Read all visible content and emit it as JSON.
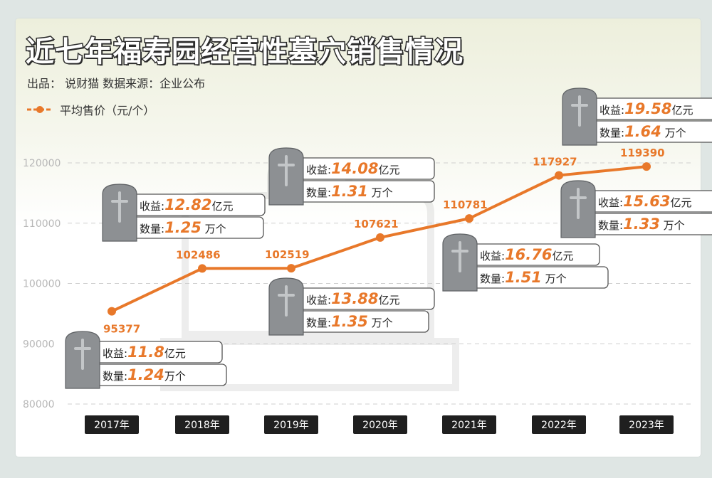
{
  "title": "近七年福寿园经营性墓穴销售情况",
  "subtitle": "出品： 说财猫  数据来源：企业公布",
  "legend": {
    "label": "平均售价（元/个）",
    "color": "#e8782a"
  },
  "chart_data": {
    "type": "line",
    "title": "近七年福寿园经营性墓穴销售情况",
    "categories": [
      "2017年",
      "2018年",
      "2019年",
      "2020年",
      "2021年",
      "2022年",
      "2023年"
    ],
    "series": [
      {
        "name": "平均售价（元/个）",
        "values": [
          95377,
          102486,
          102519,
          107621,
          110781,
          117927,
          119390
        ]
      }
    ],
    "ylim": [
      80000,
      120000
    ],
    "yticks": [
      80000,
      90000,
      100000,
      110000,
      120000
    ],
    "grid": true,
    "legend_position": "top-left",
    "annotations": [
      {
        "year": "2017年",
        "revenue_label": "收益:",
        "revenue": "11.8",
        "revenue_unit": "亿元",
        "count_label": "数量:",
        "count": "1.24",
        "count_unit": "万个"
      },
      {
        "year": "2018年",
        "revenue_label": "收益:",
        "revenue": "12.82",
        "revenue_unit": "亿元",
        "count_label": "数量:",
        "count": "1.25",
        "count_unit": " 万个"
      },
      {
        "year": "2019年",
        "revenue_label": "收益:",
        "revenue": "13.88",
        "revenue_unit": "亿元",
        "count_label": "数量:",
        "count": "1.35",
        "count_unit": " 万个"
      },
      {
        "year": "2020年",
        "revenue_label": "收益:",
        "revenue": "14.08",
        "revenue_unit": "亿元",
        "count_label": "数量:",
        "count": "1.31",
        "count_unit": " 万个"
      },
      {
        "year": "2021年",
        "revenue_label": "收益:",
        "revenue": "16.76",
        "revenue_unit": "亿元",
        "count_label": "数量:",
        "count": "1.51",
        "count_unit": " 万个"
      },
      {
        "year": "2022年",
        "revenue_label": "收益:",
        "revenue": "15.63",
        "revenue_unit": "亿元",
        "count_label": "数量:",
        "count": "1.33",
        "count_unit": " 万个"
      },
      {
        "year": "2023年",
        "revenue_label": "收益:",
        "revenue": "19.58",
        "revenue_unit": "亿元",
        "count_label": "数量:",
        "count": "1.64",
        "count_unit": " 万个"
      }
    ]
  }
}
